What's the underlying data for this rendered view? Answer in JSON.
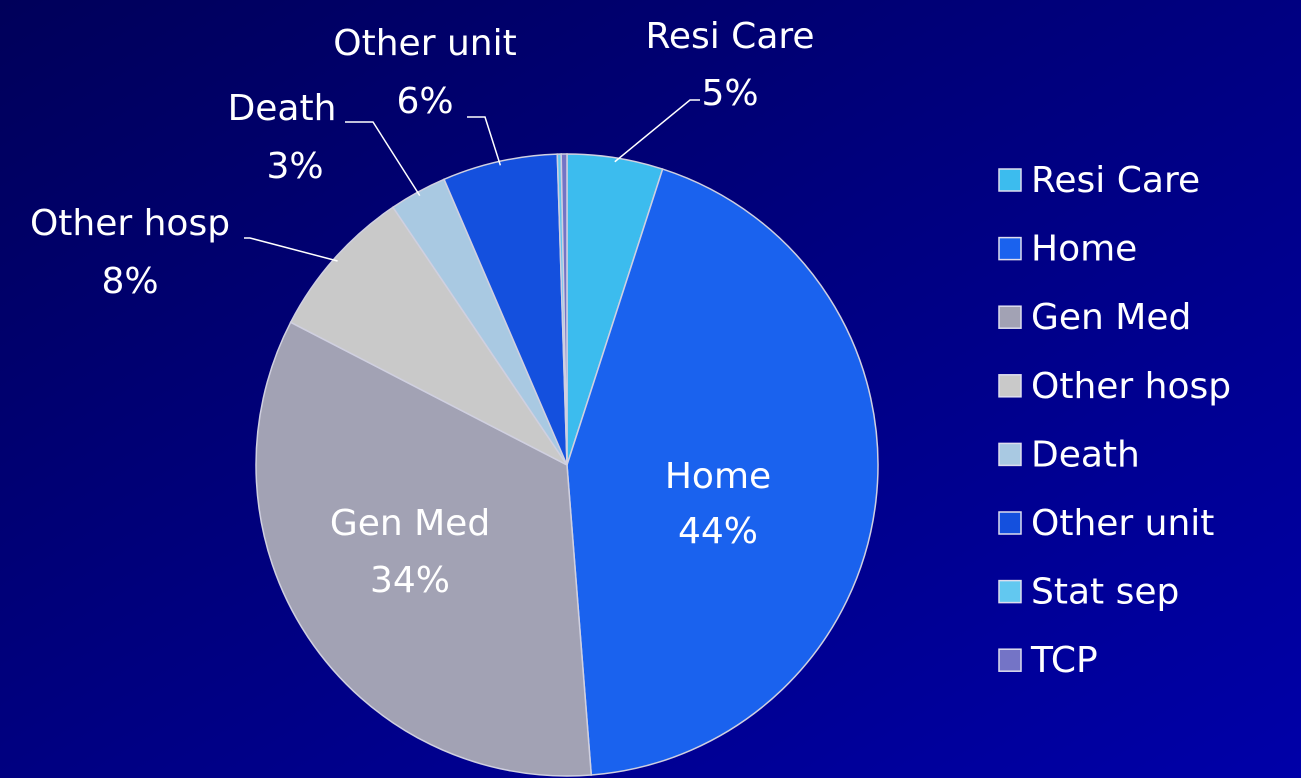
{
  "chart_data": {
    "type": "pie",
    "categories": [
      "Resi Care",
      "Home",
      "Gen Med",
      "Other hosp",
      "Death",
      "Other unit",
      "Stat sep",
      "TCP"
    ],
    "values": [
      5,
      44,
      34,
      8,
      3,
      6,
      0.2,
      0.3
    ],
    "value_labels": [
      "5%",
      "44%",
      "34%",
      "8%",
      "3%",
      "6%",
      null,
      null
    ],
    "colors": [
      "#3cbcee",
      "#1a62ee",
      "#a2a2b4",
      "#c9c9c9",
      "#a9c9e2",
      "#1450de",
      "#62c8f0",
      "#7474c6"
    ],
    "legend": "right"
  }
}
